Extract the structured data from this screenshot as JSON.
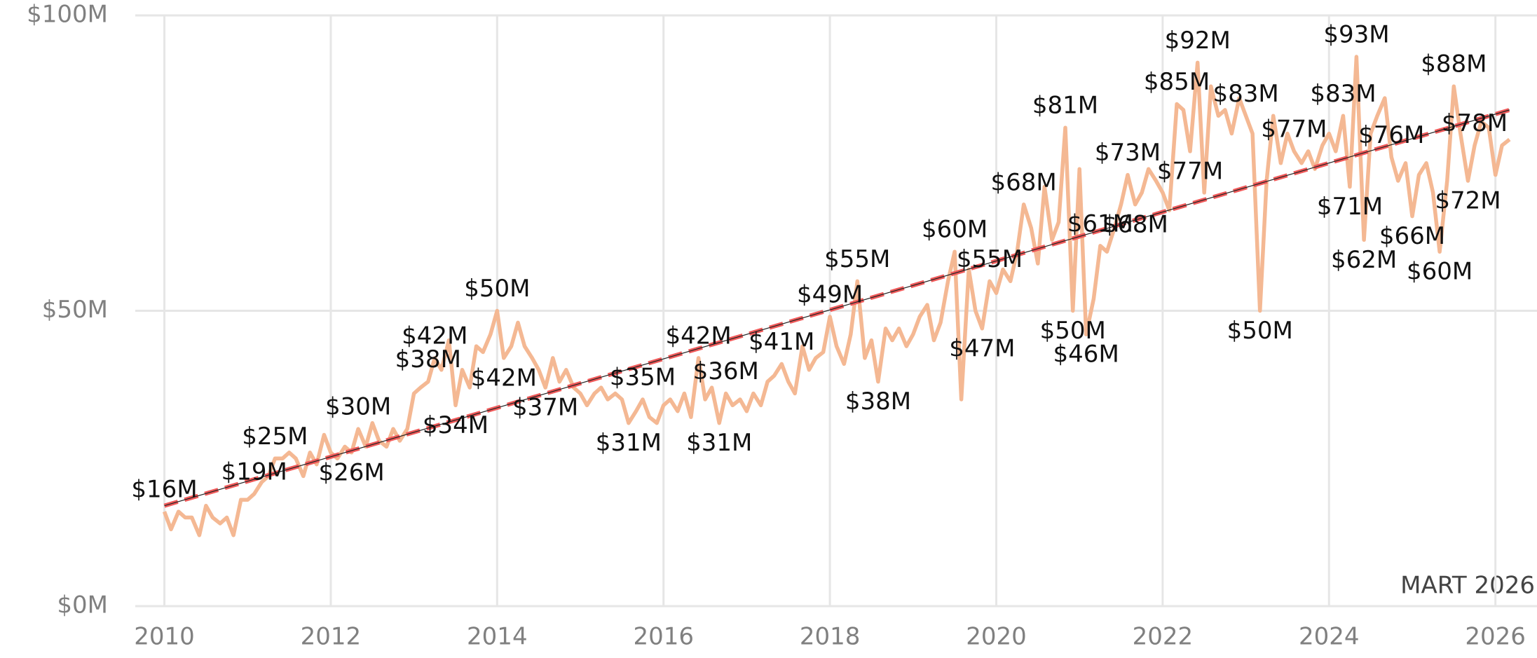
{
  "chart_data": {
    "type": "line",
    "annotation": "MART 2026",
    "x": [
      2010.0,
      2010.08,
      2010.17,
      2010.25,
      2010.33,
      2010.42,
      2010.5,
      2010.58,
      2010.67,
      2010.75,
      2010.83,
      2010.92,
      2011.0,
      2011.08,
      2011.17,
      2011.25,
      2011.33,
      2011.42,
      2011.5,
      2011.58,
      2011.67,
      2011.75,
      2011.83,
      2011.92,
      2012.0,
      2012.08,
      2012.17,
      2012.25,
      2012.33,
      2012.42,
      2012.5,
      2012.58,
      2012.67,
      2012.75,
      2012.83,
      2012.92,
      2013.0,
      2013.08,
      2013.17,
      2013.25,
      2013.33,
      2013.42,
      2013.5,
      2013.58,
      2013.67,
      2013.75,
      2013.83,
      2013.92,
      2014.0,
      2014.08,
      2014.17,
      2014.25,
      2014.33,
      2014.42,
      2014.5,
      2014.58,
      2014.67,
      2014.75,
      2014.83,
      2014.92,
      2015.0,
      2015.08,
      2015.17,
      2015.25,
      2015.33,
      2015.42,
      2015.5,
      2015.58,
      2015.67,
      2015.75,
      2015.83,
      2015.92,
      2016.0,
      2016.08,
      2016.17,
      2016.25,
      2016.33,
      2016.42,
      2016.5,
      2016.58,
      2016.67,
      2016.75,
      2016.83,
      2016.92,
      2017.0,
      2017.08,
      2017.17,
      2017.25,
      2017.33,
      2017.42,
      2017.5,
      2017.58,
      2017.67,
      2017.75,
      2017.83,
      2017.92,
      2018.0,
      2018.08,
      2018.17,
      2018.25,
      2018.33,
      2018.42,
      2018.5,
      2018.58,
      2018.67,
      2018.75,
      2018.83,
      2018.92,
      2019.0,
      2019.08,
      2019.17,
      2019.25,
      2019.33,
      2019.42,
      2019.5,
      2019.58,
      2019.67,
      2019.75,
      2019.83,
      2019.92,
      2020.0,
      2020.08,
      2020.17,
      2020.25,
      2020.33,
      2020.42,
      2020.5,
      2020.58,
      2020.67,
      2020.75,
      2020.83,
      2020.92,
      2021.0,
      2021.08,
      2021.17,
      2021.25,
      2021.33,
      2021.42,
      2021.5,
      2021.58,
      2021.67,
      2021.75,
      2021.83,
      2021.92,
      2022.0,
      2022.08,
      2022.17,
      2022.25,
      2022.33,
      2022.42,
      2022.5,
      2022.58,
      2022.67,
      2022.75,
      2022.83,
      2022.92,
      2023.0,
      2023.08,
      2023.17,
      2023.25,
      2023.33,
      2023.42,
      2023.5,
      2023.58,
      2023.67,
      2023.75,
      2023.83,
      2023.92,
      2024.0,
      2024.08,
      2024.17,
      2024.25,
      2024.33,
      2024.42,
      2024.5,
      2024.58,
      2024.67,
      2024.75,
      2024.83,
      2024.92,
      2025.0,
      2025.08,
      2025.17,
      2025.25,
      2025.33,
      2025.42,
      2025.5,
      2025.58,
      2025.67,
      2025.75,
      2025.83,
      2025.92,
      2026.0,
      2026.08,
      2026.17
    ],
    "values": [
      16,
      13,
      16,
      15,
      15,
      12,
      17,
      15,
      14,
      15,
      12,
      18,
      18,
      19,
      21,
      22,
      25,
      25,
      26,
      25,
      22,
      26,
      24,
      29,
      26,
      25,
      27,
      26,
      30,
      27,
      31,
      28,
      27,
      30,
      28,
      30,
      36,
      37,
      38,
      42,
      40,
      45,
      34,
      40,
      37,
      44,
      43,
      46,
      50,
      42,
      44,
      48,
      44,
      42,
      40,
      37,
      42,
      38,
      40,
      37,
      36,
      34,
      36,
      37,
      35,
      36,
      35,
      31,
      33,
      35,
      32,
      31,
      34,
      35,
      33,
      36,
      32,
      42,
      35,
      37,
      31,
      36,
      34,
      35,
      33,
      36,
      34,
      38,
      39,
      41,
      38,
      36,
      44,
      40,
      42,
      43,
      49,
      44,
      41,
      46,
      55,
      42,
      45,
      38,
      47,
      45,
      47,
      44,
      46,
      49,
      51,
      45,
      48,
      55,
      60,
      35,
      57,
      50,
      47,
      55,
      53,
      57,
      55,
      60,
      68,
      64,
      58,
      71,
      62,
      65,
      81,
      50,
      74,
      46,
      52,
      61,
      60,
      64,
      68,
      73,
      68,
      70,
      74,
      72,
      70,
      67,
      85,
      84,
      77,
      92,
      70,
      88,
      83,
      84,
      80,
      86,
      83,
      80,
      50,
      72,
      83,
      75,
      80,
      77,
      75,
      77,
      74,
      78,
      80,
      77,
      83,
      71,
      93,
      62,
      80,
      83,
      86,
      76,
      72,
      75,
      66,
      73,
      75,
      70,
      60,
      72,
      88,
      80,
      72,
      78,
      82,
      81,
      73,
      78,
      79
    ],
    "value_labels": [
      "$16M",
      null,
      null,
      null,
      null,
      null,
      null,
      null,
      null,
      null,
      null,
      null,
      null,
      "$19M",
      null,
      null,
      "$25M",
      null,
      null,
      null,
      null,
      null,
      null,
      null,
      null,
      null,
      null,
      "$26M",
      "$30M",
      null,
      null,
      null,
      null,
      null,
      null,
      null,
      null,
      null,
      "$38M",
      "$42M",
      null,
      null,
      "$34M",
      null,
      null,
      null,
      null,
      null,
      "$50M",
      "$42M",
      null,
      null,
      null,
      null,
      null,
      "$37M",
      null,
      null,
      null,
      null,
      null,
      null,
      null,
      null,
      null,
      null,
      null,
      "$31M",
      null,
      "$35M",
      null,
      null,
      null,
      null,
      null,
      null,
      null,
      "$42M",
      null,
      null,
      "$31M",
      "$36M",
      null,
      null,
      null,
      null,
      null,
      null,
      null,
      "$41M",
      null,
      null,
      null,
      null,
      null,
      null,
      "$49M",
      null,
      null,
      null,
      "$55M",
      null,
      null,
      "$38M",
      null,
      null,
      null,
      null,
      null,
      null,
      null,
      null,
      null,
      null,
      "$60M",
      null,
      null,
      null,
      "$47M",
      "$55M",
      null,
      null,
      null,
      null,
      "$68M",
      null,
      null,
      null,
      null,
      null,
      "$81M",
      "$50M",
      null,
      "$46M",
      null,
      "$61M",
      null,
      null,
      null,
      "$73M",
      "$68M",
      null,
      null,
      null,
      null,
      null,
      "$85M",
      null,
      "$77M",
      "$92M",
      null,
      null,
      null,
      null,
      null,
      null,
      "$83M",
      null,
      "$50M",
      null,
      null,
      null,
      null,
      "$77M",
      null,
      null,
      null,
      null,
      null,
      null,
      "$83M",
      "$71M",
      "$93M",
      "$62M",
      null,
      null,
      null,
      "$76M",
      null,
      null,
      "$66M",
      null,
      null,
      null,
      "$60M",
      null,
      "$88M",
      null,
      "$72M",
      "$78M",
      null,
      null,
      null,
      null,
      null
    ],
    "color": "#f4b893",
    "trend": {
      "x": [
        2010.0,
        2026.17
      ],
      "values": [
        17,
        84
      ],
      "color": "#f05a5a"
    },
    "xlim": [
      2009.65,
      2026.5
    ],
    "xticks": [
      2010,
      2012,
      2014,
      2016,
      2018,
      2020,
      2022,
      2024,
      2026
    ],
    "ylim": [
      0,
      100
    ],
    "yticks": [
      {
        "value": 0,
        "label": "$0M"
      },
      {
        "value": 50,
        "label": "$50M"
      },
      {
        "value": 100,
        "label": "$100M"
      }
    ],
    "grid": true
  }
}
